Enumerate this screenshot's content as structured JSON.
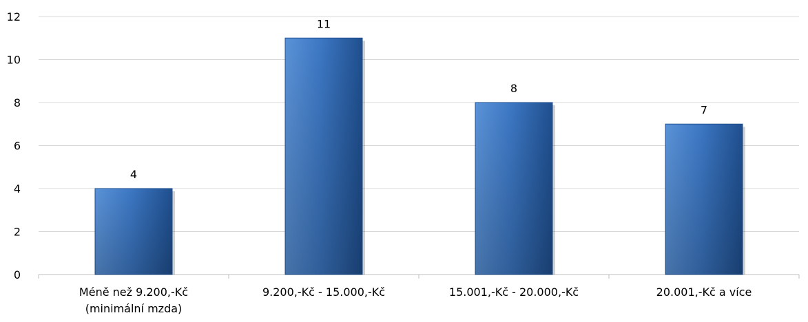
{
  "chart_data": {
    "type": "bar",
    "categories": [
      [
        "Méně než 9.200,-Kč",
        "(minimální mzda)"
      ],
      [
        "9.200,-Kč - 15.000,-Kč"
      ],
      [
        "15.001,-Kč - 20.000,-Kč"
      ],
      [
        "20.001,-Kč a více"
      ]
    ],
    "values": [
      4,
      11,
      8,
      7
    ],
    "data_labels": [
      "4",
      "11",
      "8",
      "7"
    ],
    "y_ticks": [
      "0",
      "2",
      "4",
      "6",
      "8",
      "10",
      "12"
    ],
    "ylim": [
      0,
      12
    ],
    "grid": true,
    "legend": "none",
    "title": "",
    "xlabel": "",
    "ylabel": "",
    "colors": {
      "bar_light": "#5b93d8",
      "bar_main": "#3d78c4",
      "bar_dark": "#1f4f8f",
      "grid": "#d9d9d9",
      "axis": "#bfbfbf"
    }
  }
}
